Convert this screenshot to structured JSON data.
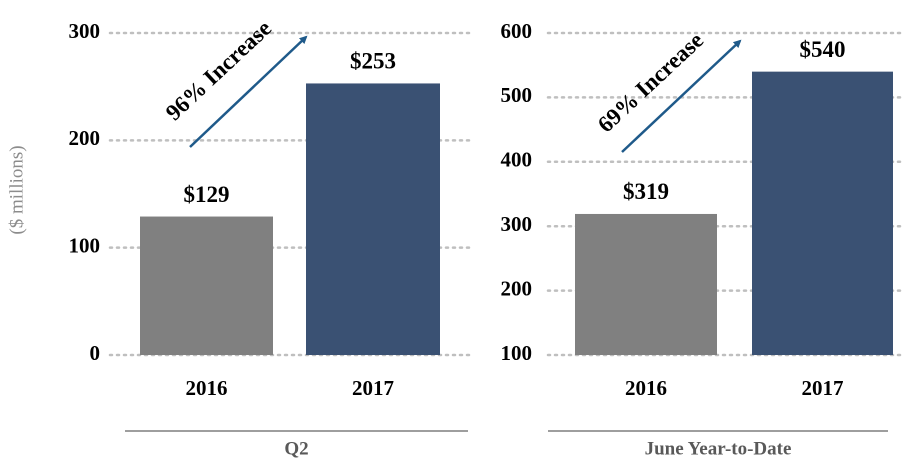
{
  "chart_data": [
    {
      "type": "bar",
      "xlabel": "Q2",
      "ylabel": "($ millions)",
      "categories": [
        "2016",
        "2017"
      ],
      "values": [
        129,
        253
      ],
      "value_labels": [
        "$129",
        "$253"
      ],
      "colors": [
        "#808080",
        "#3a5173"
      ],
      "ylim": [
        0,
        300
      ],
      "yticks": [
        0,
        100,
        200,
        300
      ],
      "grid": true,
      "annotation": "96% Increase"
    },
    {
      "type": "bar",
      "xlabel": "June Year-to-Date",
      "categories": [
        "2016",
        "2017"
      ],
      "values": [
        319,
        540
      ],
      "value_labels": [
        "$319",
        "$540"
      ],
      "colors": [
        "#808080",
        "#3a5173"
      ],
      "ylim": [
        100,
        600
      ],
      "yticks": [
        100,
        200,
        300,
        400,
        500,
        600
      ],
      "grid": true,
      "annotation": "69% Increase"
    }
  ]
}
